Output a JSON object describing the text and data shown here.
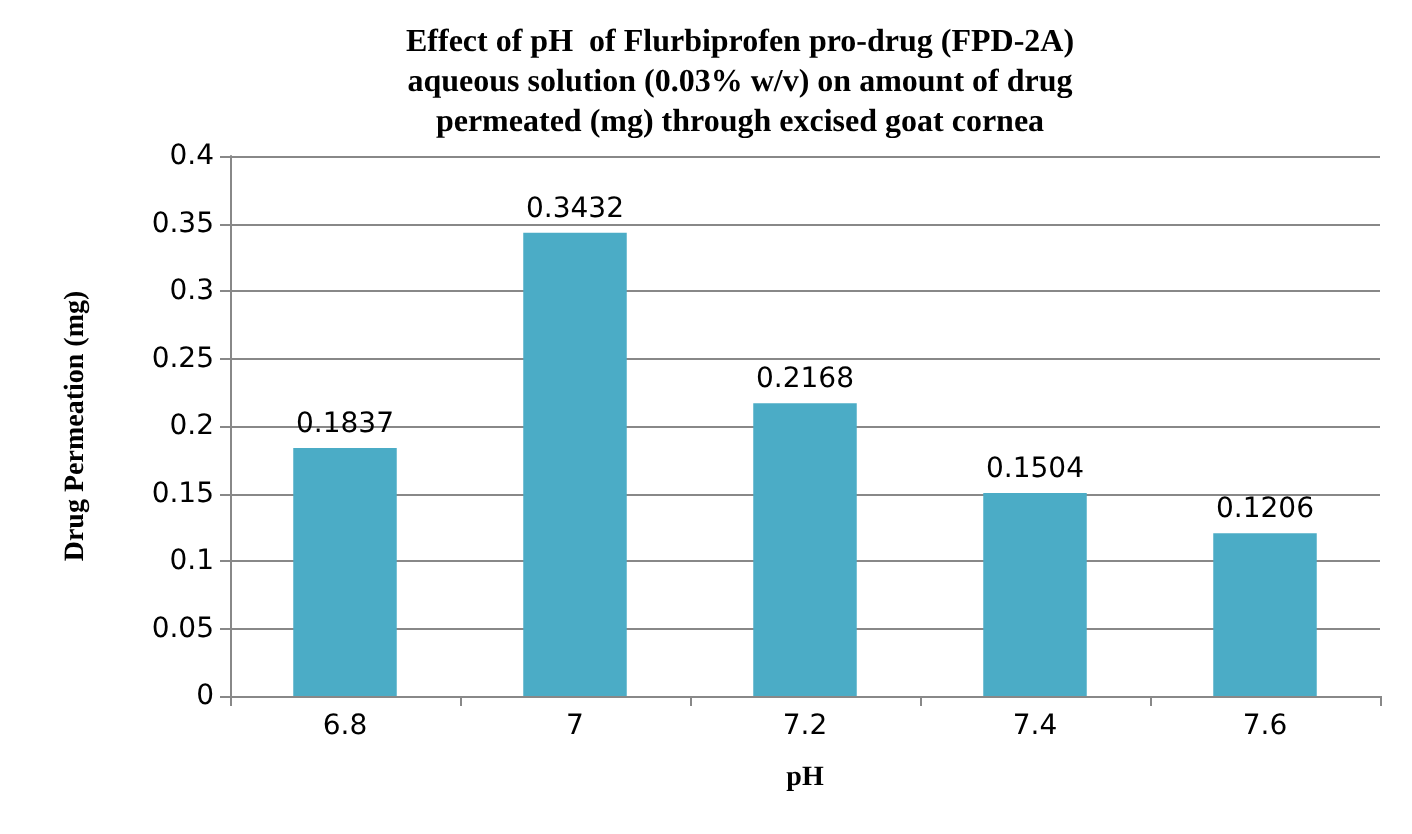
{
  "chart_data": {
    "type": "bar",
    "title": "Effect of pH  of Flurbiprofen pro-drug (FPD-2A)\naqueous solution (0.03% w/v) on amount of drug\npermeated (mg) through excised goat cornea",
    "xlabel": "pH",
    "ylabel": "Drug Permeation (mg)",
    "categories": [
      "6.8",
      "7",
      "7.2",
      "7.4",
      "7.6"
    ],
    "values": [
      0.1837,
      0.3432,
      0.2168,
      0.1504,
      0.1206
    ],
    "color": "#4bacc6",
    "ylim": [
      0,
      0.4
    ],
    "yticks": [
      0,
      0.05,
      0.1,
      0.15,
      0.2,
      0.25,
      0.3,
      0.35,
      0.4
    ],
    "grid": "y",
    "data_labels": true
  }
}
